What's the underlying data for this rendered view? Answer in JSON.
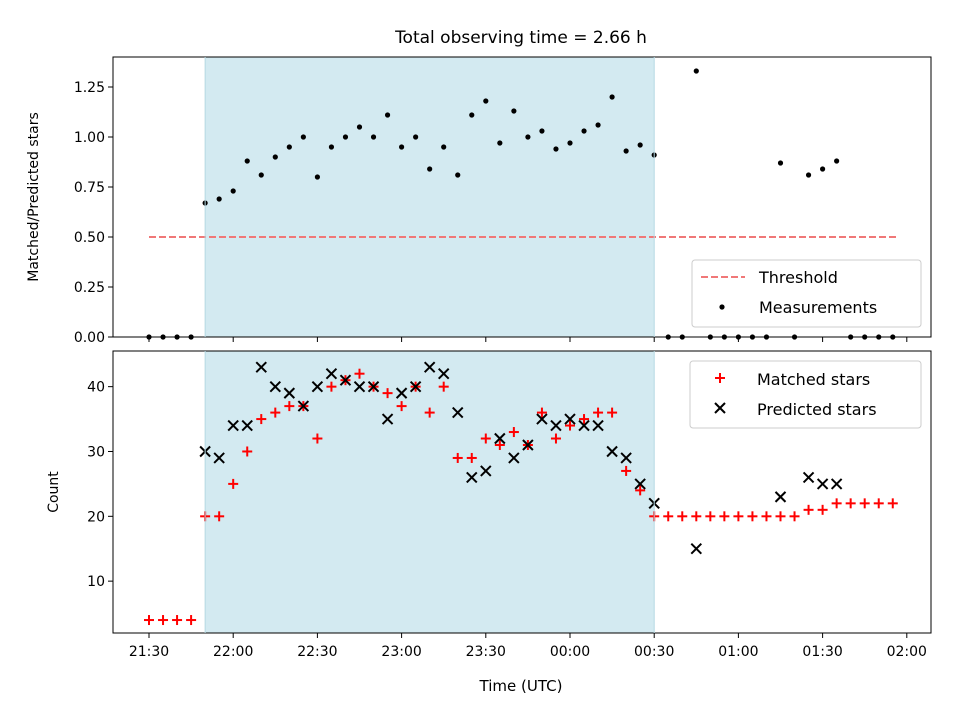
{
  "chart_data": [
    {
      "type": "scatter",
      "title": "Total observing time = 2.66 h",
      "ylabel": "Matched/Predicted stars",
      "xlabel": "",
      "ylim": [
        0,
        1.4
      ],
      "yticks": [
        "0.00",
        "0.25",
        "0.50",
        "0.75",
        "1.00",
        "1.25"
      ],
      "grid": false,
      "legend_position": "lower-right",
      "shaded_interval": [
        "21:50",
        "00:30"
      ],
      "shade_color": "#d3eaf1",
      "threshold": {
        "name": "Threshold",
        "value": 0.5,
        "x_range": [
          "21:30",
          "01:57"
        ],
        "color": "#f07878",
        "style": "dashed"
      },
      "series": [
        {
          "name": "Measurements",
          "color": "#000000",
          "points": [
            [
              "21:30",
              0
            ],
            [
              "21:35",
              0
            ],
            [
              "21:40",
              0
            ],
            [
              "21:45",
              0
            ],
            [
              "21:50",
              0.67
            ],
            [
              "21:55",
              0.69
            ],
            [
              "22:00",
              0.73
            ],
            [
              "22:05",
              0.88
            ],
            [
              "22:10",
              0.81
            ],
            [
              "22:15",
              0.9
            ],
            [
              "22:20",
              0.95
            ],
            [
              "22:25",
              1.0
            ],
            [
              "22:30",
              0.8
            ],
            [
              "22:35",
              0.95
            ],
            [
              "22:40",
              1.0
            ],
            [
              "22:45",
              1.05
            ],
            [
              "22:50",
              1.0
            ],
            [
              "22:55",
              1.11
            ],
            [
              "23:00",
              0.95
            ],
            [
              "23:05",
              1.0
            ],
            [
              "23:10",
              0.84
            ],
            [
              "23:15",
              0.95
            ],
            [
              "23:20",
              0.81
            ],
            [
              "23:25",
              1.11
            ],
            [
              "23:30",
              1.18
            ],
            [
              "23:35",
              0.97
            ],
            [
              "23:40",
              1.13
            ],
            [
              "23:45",
              1.0
            ],
            [
              "23:50",
              1.03
            ],
            [
              "23:55",
              0.94
            ],
            [
              "00:00",
              0.97
            ],
            [
              "00:05",
              1.03
            ],
            [
              "00:10",
              1.06
            ],
            [
              "00:15",
              1.2
            ],
            [
              "00:20",
              0.93
            ],
            [
              "00:25",
              0.96
            ],
            [
              "00:30",
              0.91
            ],
            [
              "00:35",
              0
            ],
            [
              "00:40",
              0
            ],
            [
              "00:45",
              1.33
            ],
            [
              "00:50",
              0
            ],
            [
              "00:55",
              0
            ],
            [
              "01:00",
              0
            ],
            [
              "01:05",
              0
            ],
            [
              "01:10",
              0
            ],
            [
              "01:15",
              0.87
            ],
            [
              "01:20",
              0
            ],
            [
              "01:25",
              0.81
            ],
            [
              "01:30",
              0.84
            ],
            [
              "01:35",
              0.88
            ],
            [
              "01:40",
              0
            ],
            [
              "01:45",
              0
            ],
            [
              "01:50",
              0
            ],
            [
              "01:55",
              0
            ]
          ]
        }
      ]
    },
    {
      "type": "scatter",
      "title": "",
      "xlabel": "Time (UTC)",
      "ylabel": "Count",
      "ylim": [
        2.0,
        45.5
      ],
      "yticks": [
        "10",
        "20",
        "30",
        "40"
      ],
      "xticks": [
        "21:30",
        "22:00",
        "22:30",
        "23:00",
        "23:30",
        "00:00",
        "00:30",
        "01:00",
        "01:30",
        "02:00"
      ],
      "grid": false,
      "legend_position": "upper-right",
      "shaded_interval": [
        "21:50",
        "00:30"
      ],
      "shade_color": "#d3eaf1",
      "series": [
        {
          "name": "Matched stars",
          "color": "#ff0000",
          "marker": "plus",
          "points": [
            [
              "21:30",
              4
            ],
            [
              "21:35",
              4
            ],
            [
              "21:40",
              4
            ],
            [
              "21:45",
              4
            ],
            [
              "21:50",
              20
            ],
            [
              "21:55",
              20
            ],
            [
              "22:00",
              25
            ],
            [
              "22:05",
              30
            ],
            [
              "22:10",
              35
            ],
            [
              "22:15",
              36
            ],
            [
              "22:20",
              37
            ],
            [
              "22:25",
              37
            ],
            [
              "22:30",
              32
            ],
            [
              "22:35",
              40
            ],
            [
              "22:40",
              41
            ],
            [
              "22:45",
              42
            ],
            [
              "22:50",
              40
            ],
            [
              "22:55",
              39
            ],
            [
              "23:00",
              37
            ],
            [
              "23:05",
              40
            ],
            [
              "23:10",
              36
            ],
            [
              "23:15",
              40
            ],
            [
              "23:20",
              29
            ],
            [
              "23:25",
              29
            ],
            [
              "23:30",
              32
            ],
            [
              "23:35",
              31
            ],
            [
              "23:40",
              33
            ],
            [
              "23:45",
              31
            ],
            [
              "23:50",
              36
            ],
            [
              "23:55",
              32
            ],
            [
              "00:00",
              34
            ],
            [
              "00:05",
              35
            ],
            [
              "00:10",
              36
            ],
            [
              "00:15",
              36
            ],
            [
              "00:20",
              27
            ],
            [
              "00:25",
              24
            ],
            [
              "00:30",
              20
            ],
            [
              "00:35",
              20
            ],
            [
              "00:40",
              20
            ],
            [
              "00:45",
              20
            ],
            [
              "00:50",
              20
            ],
            [
              "00:55",
              20
            ],
            [
              "01:00",
              20
            ],
            [
              "01:05",
              20
            ],
            [
              "01:10",
              20
            ],
            [
              "01:15",
              20
            ],
            [
              "01:20",
              20
            ],
            [
              "01:25",
              21
            ],
            [
              "01:30",
              21
            ],
            [
              "01:35",
              22
            ],
            [
              "01:40",
              22
            ],
            [
              "01:45",
              22
            ],
            [
              "01:50",
              22
            ],
            [
              "01:55",
              22
            ]
          ]
        },
        {
          "name": "Predicted stars",
          "color": "#000000",
          "marker": "x",
          "points": [
            [
              "21:50",
              30
            ],
            [
              "21:55",
              29
            ],
            [
              "22:00",
              34
            ],
            [
              "22:05",
              34
            ],
            [
              "22:10",
              43
            ],
            [
              "22:15",
              40
            ],
            [
              "22:20",
              39
            ],
            [
              "22:25",
              37
            ],
            [
              "22:30",
              40
            ],
            [
              "22:35",
              42
            ],
            [
              "22:40",
              41
            ],
            [
              "22:45",
              40
            ],
            [
              "22:50",
              40
            ],
            [
              "22:55",
              35
            ],
            [
              "23:00",
              39
            ],
            [
              "23:05",
              40
            ],
            [
              "23:10",
              43
            ],
            [
              "23:15",
              42
            ],
            [
              "23:20",
              36
            ],
            [
              "23:25",
              26
            ],
            [
              "23:30",
              27
            ],
            [
              "23:35",
              32
            ],
            [
              "23:40",
              29
            ],
            [
              "23:45",
              31
            ],
            [
              "23:50",
              35
            ],
            [
              "23:55",
              34
            ],
            [
              "00:00",
              35
            ],
            [
              "00:05",
              34
            ],
            [
              "00:10",
              34
            ],
            [
              "00:15",
              30
            ],
            [
              "00:20",
              29
            ],
            [
              "00:25",
              25
            ],
            [
              "00:30",
              22
            ],
            [
              "00:45",
              15
            ],
            [
              "01:15",
              23
            ],
            [
              "01:25",
              26
            ],
            [
              "01:30",
              25
            ],
            [
              "01:35",
              25
            ]
          ]
        }
      ]
    }
  ]
}
